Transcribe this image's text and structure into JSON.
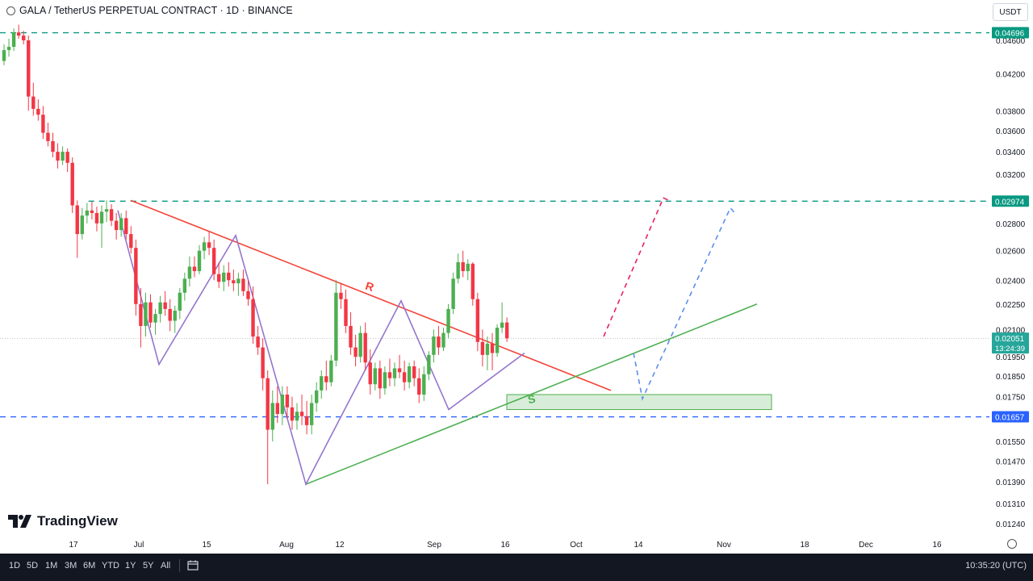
{
  "header": {
    "title": "GALA / TetherUS PERPETUAL CONTRACT · 1D · BINANCE",
    "symbol_icon": "gala-logo-icon"
  },
  "currency_button": "USDT",
  "logo": {
    "text": "TradingView"
  },
  "bottombar": {
    "timeframes": [
      "1D",
      "5D",
      "1M",
      "3M",
      "6M",
      "YTD",
      "1Y",
      "5Y",
      "All"
    ],
    "time": "10:35:20 (UTC)",
    "calendar_icon": "calendar-icon"
  },
  "colors": {
    "up": "#26a69a",
    "down": "#ef5350",
    "up_candle": "#4caf50",
    "down_candle": "#f23645",
    "resistance": "#f44336",
    "support": "#4caf50",
    "pattern": "#9575cd",
    "level_green": "#089981",
    "level_blue": "#2962ff"
  },
  "chart_data": {
    "type": "candlestick",
    "title": "GALA / TetherUS PERPETUAL CONTRACT · 1D · BINANCE",
    "y_axis": {
      "scale": "log",
      "ticks": [
        "0.04600",
        "0.04200",
        "0.03800",
        "0.03600",
        "0.03400",
        "0.03200",
        "0.02800",
        "0.02600",
        "0.02400",
        "0.02250",
        "0.02100",
        "0.01950",
        "0.01850",
        "0.01750",
        "0.01550",
        "0.01470",
        "0.01390",
        "0.01310",
        "0.01240"
      ]
    },
    "x_axis": {
      "ticks": [
        "17",
        "Jul",
        "15",
        "Aug",
        "12",
        "Sep",
        "16",
        "Oct",
        "14",
        "Nov",
        "18",
        "Dec",
        "16"
      ]
    },
    "price_labels": [
      {
        "value": "0.04696",
        "kind": "level"
      },
      {
        "value": "0.02974",
        "kind": "level"
      },
      {
        "value": "0.02051",
        "countdown": "13:24:39",
        "kind": "current"
      },
      {
        "value": "0.01657",
        "kind": "level"
      }
    ],
    "annotations": {
      "resistance_label": "R",
      "support_label": "S"
    },
    "candles": [
      [
        0.0435,
        0.0455,
        0.043,
        0.0448
      ],
      [
        0.0448,
        0.0462,
        0.044,
        0.0452
      ],
      [
        0.0452,
        0.0475,
        0.0447,
        0.047
      ],
      [
        0.047,
        0.048,
        0.0462,
        0.0466
      ],
      [
        0.0466,
        0.0472,
        0.0455,
        0.046
      ],
      [
        0.046,
        0.0466,
        0.038,
        0.0395
      ],
      [
        0.0395,
        0.041,
        0.0375,
        0.0382
      ],
      [
        0.0382,
        0.0392,
        0.037,
        0.0376
      ],
      [
        0.0376,
        0.0385,
        0.0352,
        0.0358
      ],
      [
        0.0358,
        0.0368,
        0.0345,
        0.035
      ],
      [
        0.035,
        0.0358,
        0.0335,
        0.034
      ],
      [
        0.034,
        0.0348,
        0.0325,
        0.0332
      ],
      [
        0.0332,
        0.0345,
        0.0328,
        0.034
      ],
      [
        0.034,
        0.0343,
        0.0322,
        0.033
      ],
      [
        0.033,
        0.0335,
        0.0288,
        0.0294
      ],
      [
        0.0294,
        0.0298,
        0.0255,
        0.0272
      ],
      [
        0.0272,
        0.0292,
        0.0268,
        0.0286
      ],
      [
        0.0286,
        0.0296,
        0.028,
        0.029
      ],
      [
        0.029,
        0.0297,
        0.0283,
        0.0288
      ],
      [
        0.0288,
        0.0293,
        0.0274,
        0.028
      ],
      [
        0.028,
        0.0294,
        0.0262,
        0.0289
      ],
      [
        0.0289,
        0.0298,
        0.0281,
        0.0291
      ],
      [
        0.0291,
        0.0295,
        0.0278,
        0.0282
      ],
      [
        0.0282,
        0.0288,
        0.0268,
        0.0275
      ],
      [
        0.0275,
        0.0288,
        0.027,
        0.0284
      ],
      [
        0.0284,
        0.029,
        0.0268,
        0.0272
      ],
      [
        0.0272,
        0.0278,
        0.0258,
        0.0262
      ],
      [
        0.0262,
        0.0268,
        0.0218,
        0.0225
      ],
      [
        0.0225,
        0.0235,
        0.02,
        0.0212
      ],
      [
        0.0212,
        0.0232,
        0.0206,
        0.0226
      ],
      [
        0.0226,
        0.0231,
        0.0211,
        0.0214
      ],
      [
        0.0214,
        0.0222,
        0.0207,
        0.0219
      ],
      [
        0.0219,
        0.023,
        0.0214,
        0.0226
      ],
      [
        0.0226,
        0.0233,
        0.0218,
        0.0222
      ],
      [
        0.0222,
        0.0228,
        0.0209,
        0.0215
      ],
      [
        0.0215,
        0.0224,
        0.0208,
        0.0221
      ],
      [
        0.0221,
        0.0235,
        0.0216,
        0.0232
      ],
      [
        0.0232,
        0.0245,
        0.0227,
        0.0241
      ],
      [
        0.0241,
        0.0256,
        0.0236,
        0.0249
      ],
      [
        0.0249,
        0.0256,
        0.0242,
        0.0246
      ],
      [
        0.0246,
        0.0264,
        0.0244,
        0.026
      ],
      [
        0.026,
        0.027,
        0.0254,
        0.0266
      ],
      [
        0.0266,
        0.0274,
        0.0257,
        0.0262
      ],
      [
        0.0262,
        0.0268,
        0.024,
        0.0244
      ],
      [
        0.0244,
        0.0252,
        0.0235,
        0.0239
      ],
      [
        0.0239,
        0.025,
        0.0233,
        0.0245
      ],
      [
        0.0245,
        0.0252,
        0.0236,
        0.024
      ],
      [
        0.024,
        0.0247,
        0.0233,
        0.0238
      ],
      [
        0.0238,
        0.0245,
        0.023,
        0.0241
      ],
      [
        0.0241,
        0.0247,
        0.023,
        0.0233
      ],
      [
        0.0233,
        0.024,
        0.0224,
        0.0228
      ],
      [
        0.0228,
        0.0236,
        0.0202,
        0.0206
      ],
      [
        0.0206,
        0.0212,
        0.0196,
        0.02
      ],
      [
        0.02,
        0.0205,
        0.0178,
        0.0184
      ],
      [
        0.0184,
        0.0188,
        0.0138,
        0.016
      ],
      [
        0.016,
        0.0178,
        0.0155,
        0.0172
      ],
      [
        0.0172,
        0.018,
        0.0163,
        0.0167
      ],
      [
        0.0167,
        0.018,
        0.0162,
        0.0176
      ],
      [
        0.0176,
        0.018,
        0.0165,
        0.017
      ],
      [
        0.017,
        0.0175,
        0.016,
        0.0164
      ],
      [
        0.0164,
        0.0172,
        0.016,
        0.0168
      ],
      [
        0.0168,
        0.0176,
        0.0162,
        0.0166
      ],
      [
        0.0166,
        0.0173,
        0.0158,
        0.0162
      ],
      [
        0.0162,
        0.0176,
        0.0158,
        0.0172
      ],
      [
        0.0172,
        0.0182,
        0.0168,
        0.0178
      ],
      [
        0.0178,
        0.0188,
        0.0174,
        0.0185
      ],
      [
        0.0185,
        0.0193,
        0.0178,
        0.0182
      ],
      [
        0.0182,
        0.0196,
        0.018,
        0.0193
      ],
      [
        0.0193,
        0.024,
        0.019,
        0.0232
      ],
      [
        0.0232,
        0.0238,
        0.0222,
        0.0228
      ],
      [
        0.0228,
        0.0234,
        0.0208,
        0.0212
      ],
      [
        0.0212,
        0.022,
        0.0196,
        0.02
      ],
      [
        0.02,
        0.0207,
        0.019,
        0.0195
      ],
      [
        0.0195,
        0.0212,
        0.0192,
        0.0208
      ],
      [
        0.0208,
        0.0214,
        0.0188,
        0.0192
      ],
      [
        0.0192,
        0.0199,
        0.0176,
        0.0181
      ],
      [
        0.0181,
        0.0192,
        0.0178,
        0.0189
      ],
      [
        0.0189,
        0.0193,
        0.0174,
        0.0179
      ],
      [
        0.0179,
        0.019,
        0.0176,
        0.0187
      ],
      [
        0.0187,
        0.0194,
        0.018,
        0.0184
      ],
      [
        0.0184,
        0.0192,
        0.018,
        0.0189
      ],
      [
        0.0189,
        0.0196,
        0.0184,
        0.0187
      ],
      [
        0.0187,
        0.0193,
        0.0178,
        0.0182
      ],
      [
        0.0182,
        0.0192,
        0.0179,
        0.019
      ],
      [
        0.019,
        0.0193,
        0.018,
        0.0184
      ],
      [
        0.0184,
        0.0189,
        0.0172,
        0.0176
      ],
      [
        0.0176,
        0.019,
        0.0173,
        0.0186
      ],
      [
        0.0186,
        0.0198,
        0.0183,
        0.0196
      ],
      [
        0.0196,
        0.021,
        0.0192,
        0.0206
      ],
      [
        0.0206,
        0.0212,
        0.0196,
        0.02
      ],
      [
        0.02,
        0.0211,
        0.0198,
        0.0208
      ],
      [
        0.0208,
        0.0225,
        0.0205,
        0.0222
      ],
      [
        0.0222,
        0.0245,
        0.0219,
        0.0241
      ],
      [
        0.0241,
        0.0258,
        0.0238,
        0.0252
      ],
      [
        0.0252,
        0.026,
        0.0242,
        0.0246
      ],
      [
        0.0246,
        0.0254,
        0.024,
        0.0251
      ],
      [
        0.0251,
        0.0252,
        0.0224,
        0.0228
      ],
      [
        0.0228,
        0.0232,
        0.0198,
        0.0203
      ],
      [
        0.0203,
        0.021,
        0.019,
        0.0196
      ],
      [
        0.0196,
        0.0206,
        0.0188,
        0.0202
      ],
      [
        0.0202,
        0.0208,
        0.0188,
        0.0197
      ],
      [
        0.0197,
        0.0213,
        0.0195,
        0.0211
      ],
      [
        0.0211,
        0.0226,
        0.0208,
        0.0214
      ],
      [
        0.0214,
        0.0217,
        0.0203,
        0.0205
      ]
    ],
    "lines": {
      "levels": [
        {
          "price": 0.04696,
          "color": "level_green"
        },
        {
          "price": 0.02974,
          "color": "level_green",
          "from_candle": 14
        },
        {
          "price": 0.01657,
          "color": "level_blue"
        }
      ]
    }
  }
}
